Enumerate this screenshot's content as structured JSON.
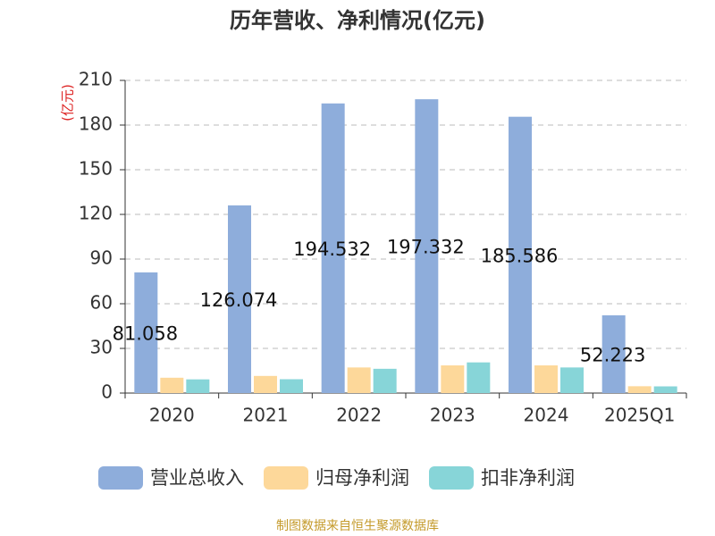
{
  "chart_data": {
    "type": "bar",
    "title": "历年营收、净利情况(亿元)",
    "y_label": "(亿元)",
    "categories": [
      "2020",
      "2021",
      "2022",
      "2023",
      "2024",
      "2025Q1"
    ],
    "series": [
      {
        "name": "营业总收入",
        "color": "#8eaddb",
        "values": [
          81.058,
          126.074,
          194.532,
          197.332,
          185.586,
          52.223
        ],
        "show_labels": true
      },
      {
        "name": "归母净利润",
        "color": "#fdd89a",
        "values": [
          10.3,
          11.5,
          17.2,
          18.6,
          18.6,
          4.6
        ]
      },
      {
        "name": "扣非净利润",
        "color": "#87d5d8",
        "values": [
          9.2,
          9.3,
          16.3,
          20.6,
          17.2,
          4.5
        ]
      }
    ],
    "ylim": [
      0,
      210
    ],
    "yticks": [
      0,
      30,
      60,
      90,
      120,
      150,
      180,
      210
    ],
    "grid": true,
    "source": "制图数据来自恒生聚源数据库"
  }
}
